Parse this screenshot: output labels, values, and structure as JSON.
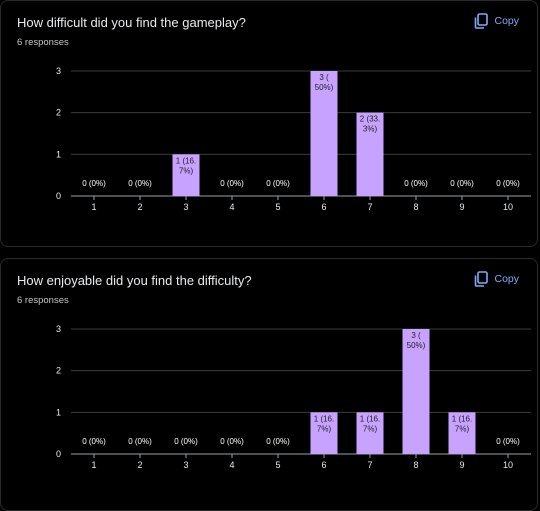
{
  "cards": [
    {
      "title": "How difficult did you find the gameplay?",
      "responses": "6 responses",
      "copy_label": "Copy"
    },
    {
      "title": "How enjoyable did you find the difficulty?",
      "responses": "6 responses",
      "copy_label": "Copy"
    }
  ],
  "colors": {
    "bar": "#c8a2ff",
    "grid": "#3c3c3c",
    "link": "#7cacf8"
  },
  "chart_data": [
    {
      "type": "bar",
      "categories": [
        "1",
        "2",
        "3",
        "4",
        "5",
        "6",
        "7",
        "8",
        "9",
        "10"
      ],
      "values": [
        0,
        0,
        1,
        0,
        0,
        3,
        2,
        0,
        0,
        0
      ],
      "data_labels": [
        "0 (0%)",
        "0 (0%)",
        "1 (16.\n7%)",
        "0 (0%)",
        "0 (0%)",
        "3 (\n50%)",
        "2 (33.\n3%)",
        "0 (0%)",
        "0 (0%)",
        "0 (0%)"
      ],
      "yticks": [
        "0",
        "1",
        "2",
        "3"
      ],
      "ylim": [
        0,
        3
      ],
      "title": "How difficult did you find the gameplay?",
      "xlabel": "",
      "ylabel": "",
      "grid": true
    },
    {
      "type": "bar",
      "categories": [
        "1",
        "2",
        "3",
        "4",
        "5",
        "6",
        "7",
        "8",
        "9",
        "10"
      ],
      "values": [
        0,
        0,
        0,
        0,
        0,
        1,
        1,
        3,
        1,
        0
      ],
      "data_labels": [
        "0 (0%)",
        "0 (0%)",
        "0 (0%)",
        "0 (0%)",
        "0 (0%)",
        "1 (16.\n7%)",
        "1 (16.\n7%)",
        "3 (\n50%)",
        "1 (16.\n7%)",
        "0 (0%)"
      ],
      "yticks": [
        "0",
        "1",
        "2",
        "3"
      ],
      "ylim": [
        0,
        3
      ],
      "title": "How enjoyable did you find the difficulty?",
      "xlabel": "",
      "ylabel": "",
      "grid": true
    }
  ]
}
